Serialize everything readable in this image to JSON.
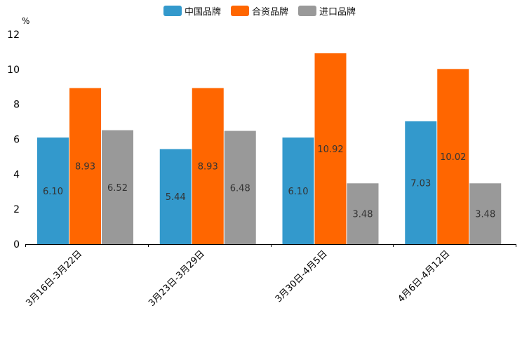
{
  "chart_data": {
    "type": "bar",
    "title": "",
    "xlabel": "",
    "ylabel": "%",
    "ylim": [
      0,
      12
    ],
    "yticks": [
      0,
      2,
      4,
      6,
      8,
      10,
      12
    ],
    "grid": false,
    "legend_position": "top-center",
    "categories": [
      "3月16日-3月22日",
      "3月23日-3月29日",
      "3月30日-4月5日",
      "4月6日-4月12日"
    ],
    "series": [
      {
        "name": "中国品牌",
        "color": "#3399cc",
        "values": [
          6.1,
          5.44,
          6.1,
          7.03
        ],
        "labels": [
          "6.10",
          "5.44",
          "6.10",
          "7.03"
        ]
      },
      {
        "name": "合资品牌",
        "color": "#ff6600",
        "values": [
          8.93,
          8.93,
          10.92,
          10.02
        ],
        "labels": [
          "8.93",
          "8.93",
          "10.92",
          "10.02"
        ]
      },
      {
        "name": "进口品牌",
        "color": "#999999",
        "values": [
          6.52,
          6.48,
          3.48,
          3.48
        ],
        "labels": [
          "6.52",
          "6.48",
          "3.48",
          "3.48"
        ]
      }
    ]
  }
}
